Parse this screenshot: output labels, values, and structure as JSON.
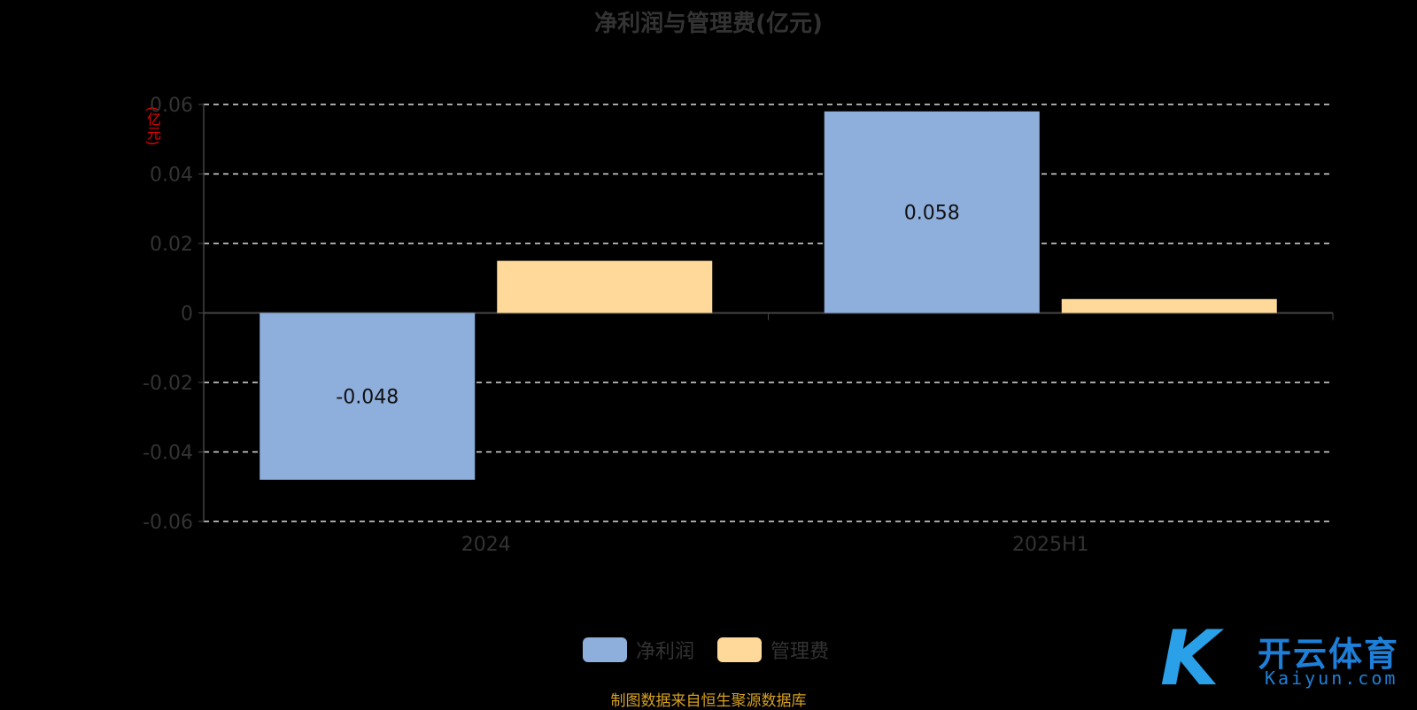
{
  "chart_data": {
    "type": "bar",
    "title": "净利润与管理费(亿元)",
    "ylabel": "(亿元)",
    "categories": [
      "2024",
      "2025H1"
    ],
    "series": [
      {
        "name": "净利润",
        "values": [
          -0.048,
          0.058
        ],
        "color": "#8eaedc",
        "data_labels": [
          "-0.048",
          "0.058"
        ]
      },
      {
        "name": "管理费",
        "values": [
          0.015,
          0.004
        ],
        "color": "#ffd99a"
      }
    ],
    "ylim": [
      -0.06,
      0.06
    ],
    "yticks": [
      "-0.06",
      "-0.04",
      "-0.02",
      "0",
      "0.02",
      "0.04",
      "0.06"
    ],
    "grid": true,
    "legend": "bottom"
  },
  "source": "制图数据来自恒生聚源数据库",
  "watermark": {
    "cn": "开云体育",
    "en": "Kaiyun.com"
  }
}
